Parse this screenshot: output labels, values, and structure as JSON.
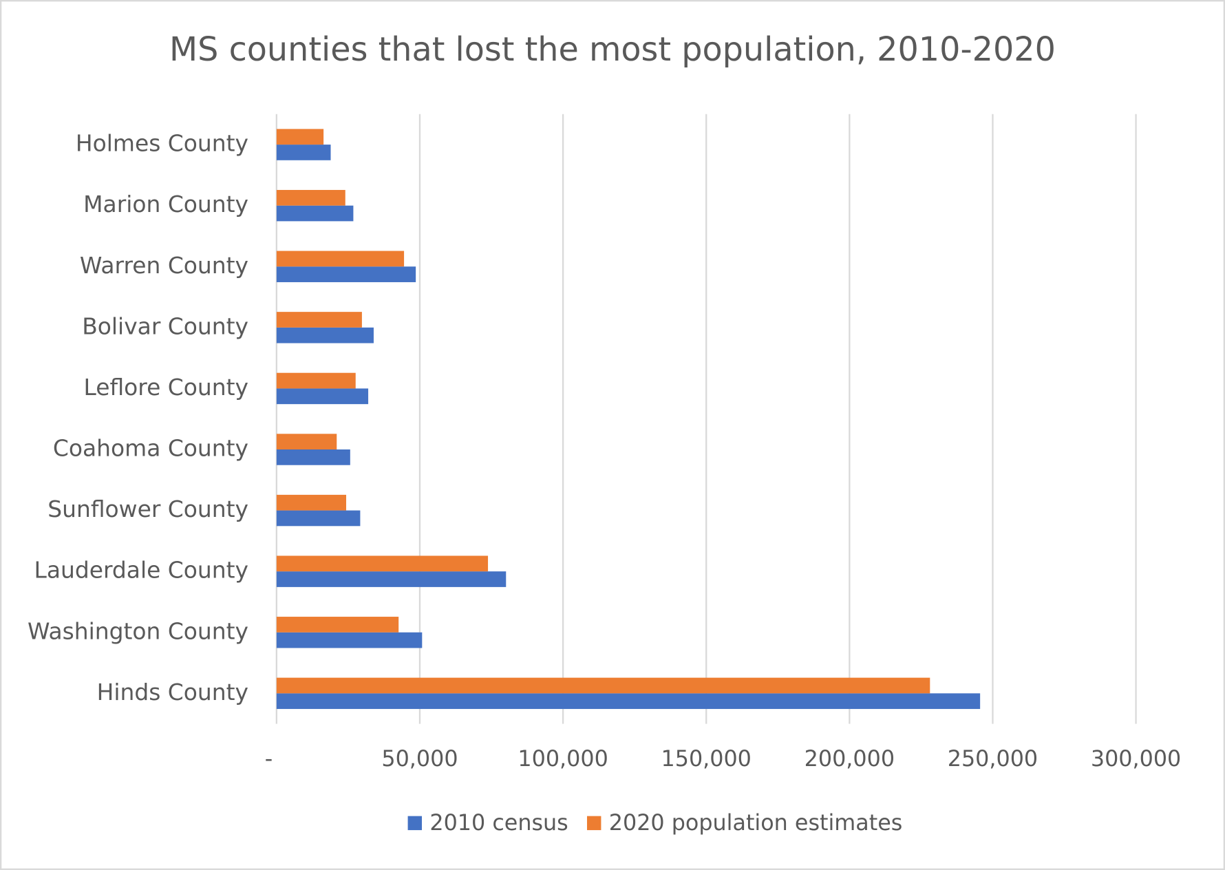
{
  "chart_data": {
    "type": "bar",
    "orientation": "horizontal",
    "title": "MS counties that lost the most population, 2010-2020",
    "categories": [
      "Holmes County",
      "Marion County",
      "Warren County",
      "Bolivar County",
      "Leflore County",
      "Coahoma County",
      "Sunflower County",
      "Lauderdale County",
      "Washington County",
      "Hinds County"
    ],
    "series": [
      {
        "name": "2010 census",
        "color": "#4472c4",
        "values": [
          18900,
          26800,
          48600,
          33900,
          32000,
          25700,
          29200,
          80100,
          50800,
          245600
        ]
      },
      {
        "name": "2020 population estimates",
        "color": "#ed7d31",
        "values": [
          16400,
          24000,
          44500,
          29800,
          27600,
          21000,
          24300,
          73800,
          42600,
          228100
        ]
      }
    ],
    "xlim": [
      0,
      300000
    ],
    "xticks": [
      {
        "value": 0,
        "label": "-"
      },
      {
        "value": 50000,
        "label": "50,000"
      },
      {
        "value": 100000,
        "label": "100,000"
      },
      {
        "value": 150000,
        "label": "150,000"
      },
      {
        "value": 200000,
        "label": "200,000"
      },
      {
        "value": 250000,
        "label": "250,000"
      },
      {
        "value": 300000,
        "label": "300,000"
      }
    ],
    "grid": true,
    "legend": "bottom"
  }
}
